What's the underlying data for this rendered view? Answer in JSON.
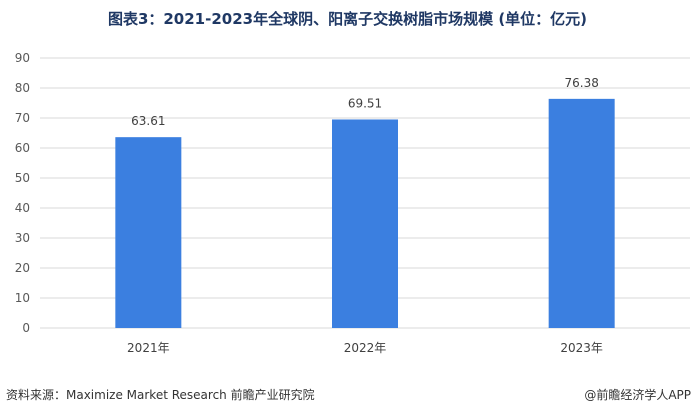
{
  "chart_data": {
    "type": "bar",
    "title": "图表3：2021-2023年全球阴、阳离子交换树脂市场规模 (单位：亿元)",
    "categories": [
      "2021年",
      "2022年",
      "2023年"
    ],
    "values": [
      63.61,
      69.51,
      76.38
    ],
    "data_labels": [
      "63.61",
      "69.51",
      "76.38"
    ],
    "y_ticks": [
      "0",
      "10",
      "20",
      "30",
      "40",
      "50",
      "60",
      "70",
      "80",
      "90"
    ],
    "ylim": [
      0,
      90
    ],
    "grid": true,
    "legend": "none",
    "bar_color": "#3b7fe0"
  },
  "footer": {
    "source": "资料来源：Maximize Market Research 前瞻产业研究院",
    "credit": "@前瞻经济学人APP"
  },
  "colors": {
    "title": "#1f3864",
    "grid": "#d9d9d9",
    "bar": "#3b7fe0"
  }
}
